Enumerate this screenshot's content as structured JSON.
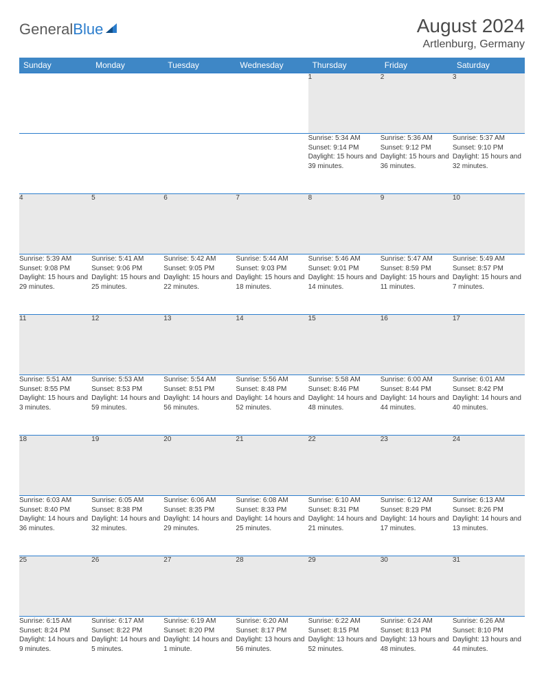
{
  "brand": {
    "part1": "General",
    "part2": "Blue"
  },
  "title": "August 2024",
  "location": "Artlenburg, Germany",
  "colors": {
    "header_bg": "#3e87c6",
    "header_text": "#ffffff",
    "daynum_bg": "#e9e9e9",
    "border": "#2a7ccc",
    "body_text": "#3a3a3a",
    "title_text": "#4a4a4a",
    "logo_gray": "#5a5a5a",
    "logo_blue": "#2a7ccc",
    "page_bg": "#ffffff"
  },
  "fonts": {
    "title_size": 28,
    "location_size": 16,
    "header_size": 12,
    "cell_size": 10
  },
  "daysOfWeek": [
    "Sunday",
    "Monday",
    "Tuesday",
    "Wednesday",
    "Thursday",
    "Friday",
    "Saturday"
  ],
  "weeks": [
    [
      null,
      null,
      null,
      null,
      {
        "n": "1",
        "sr": "5:34 AM",
        "ss": "9:14 PM",
        "dl": "15 hours and 39 minutes."
      },
      {
        "n": "2",
        "sr": "5:36 AM",
        "ss": "9:12 PM",
        "dl": "15 hours and 36 minutes."
      },
      {
        "n": "3",
        "sr": "5:37 AM",
        "ss": "9:10 PM",
        "dl": "15 hours and 32 minutes."
      }
    ],
    [
      {
        "n": "4",
        "sr": "5:39 AM",
        "ss": "9:08 PM",
        "dl": "15 hours and 29 minutes."
      },
      {
        "n": "5",
        "sr": "5:41 AM",
        "ss": "9:06 PM",
        "dl": "15 hours and 25 minutes."
      },
      {
        "n": "6",
        "sr": "5:42 AM",
        "ss": "9:05 PM",
        "dl": "15 hours and 22 minutes."
      },
      {
        "n": "7",
        "sr": "5:44 AM",
        "ss": "9:03 PM",
        "dl": "15 hours and 18 minutes."
      },
      {
        "n": "8",
        "sr": "5:46 AM",
        "ss": "9:01 PM",
        "dl": "15 hours and 14 minutes."
      },
      {
        "n": "9",
        "sr": "5:47 AM",
        "ss": "8:59 PM",
        "dl": "15 hours and 11 minutes."
      },
      {
        "n": "10",
        "sr": "5:49 AM",
        "ss": "8:57 PM",
        "dl": "15 hours and 7 minutes."
      }
    ],
    [
      {
        "n": "11",
        "sr": "5:51 AM",
        "ss": "8:55 PM",
        "dl": "15 hours and 3 minutes."
      },
      {
        "n": "12",
        "sr": "5:53 AM",
        "ss": "8:53 PM",
        "dl": "14 hours and 59 minutes."
      },
      {
        "n": "13",
        "sr": "5:54 AM",
        "ss": "8:51 PM",
        "dl": "14 hours and 56 minutes."
      },
      {
        "n": "14",
        "sr": "5:56 AM",
        "ss": "8:48 PM",
        "dl": "14 hours and 52 minutes."
      },
      {
        "n": "15",
        "sr": "5:58 AM",
        "ss": "8:46 PM",
        "dl": "14 hours and 48 minutes."
      },
      {
        "n": "16",
        "sr": "6:00 AM",
        "ss": "8:44 PM",
        "dl": "14 hours and 44 minutes."
      },
      {
        "n": "17",
        "sr": "6:01 AM",
        "ss": "8:42 PM",
        "dl": "14 hours and 40 minutes."
      }
    ],
    [
      {
        "n": "18",
        "sr": "6:03 AM",
        "ss": "8:40 PM",
        "dl": "14 hours and 36 minutes."
      },
      {
        "n": "19",
        "sr": "6:05 AM",
        "ss": "8:38 PM",
        "dl": "14 hours and 32 minutes."
      },
      {
        "n": "20",
        "sr": "6:06 AM",
        "ss": "8:35 PM",
        "dl": "14 hours and 29 minutes."
      },
      {
        "n": "21",
        "sr": "6:08 AM",
        "ss": "8:33 PM",
        "dl": "14 hours and 25 minutes."
      },
      {
        "n": "22",
        "sr": "6:10 AM",
        "ss": "8:31 PM",
        "dl": "14 hours and 21 minutes."
      },
      {
        "n": "23",
        "sr": "6:12 AM",
        "ss": "8:29 PM",
        "dl": "14 hours and 17 minutes."
      },
      {
        "n": "24",
        "sr": "6:13 AM",
        "ss": "8:26 PM",
        "dl": "14 hours and 13 minutes."
      }
    ],
    [
      {
        "n": "25",
        "sr": "6:15 AM",
        "ss": "8:24 PM",
        "dl": "14 hours and 9 minutes."
      },
      {
        "n": "26",
        "sr": "6:17 AM",
        "ss": "8:22 PM",
        "dl": "14 hours and 5 minutes."
      },
      {
        "n": "27",
        "sr": "6:19 AM",
        "ss": "8:20 PM",
        "dl": "14 hours and 1 minute."
      },
      {
        "n": "28",
        "sr": "6:20 AM",
        "ss": "8:17 PM",
        "dl": "13 hours and 56 minutes."
      },
      {
        "n": "29",
        "sr": "6:22 AM",
        "ss": "8:15 PM",
        "dl": "13 hours and 52 minutes."
      },
      {
        "n": "30",
        "sr": "6:24 AM",
        "ss": "8:13 PM",
        "dl": "13 hours and 48 minutes."
      },
      {
        "n": "31",
        "sr": "6:26 AM",
        "ss": "8:10 PM",
        "dl": "13 hours and 44 minutes."
      }
    ]
  ]
}
